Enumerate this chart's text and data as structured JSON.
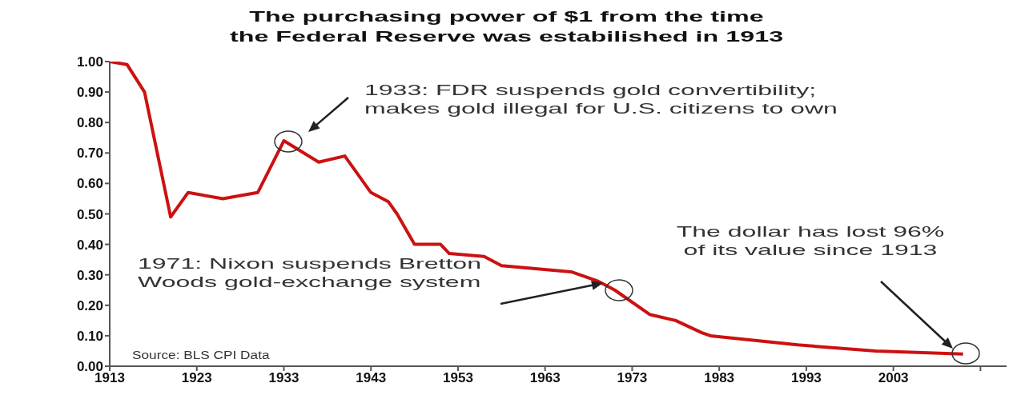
{
  "chart_data": {
    "type": "line",
    "title": "The purchasing power of $1 from the time\nthe Federal Reserve was estabilished in 1913",
    "x": [
      1913,
      1915,
      1917,
      1920,
      1922,
      1926,
      1930,
      1933,
      1937,
      1940,
      1943,
      1945,
      1946,
      1948,
      1951,
      1952,
      1956,
      1958,
      1966,
      1969,
      1971,
      1975,
      1978,
      1981,
      1982,
      1992,
      2001,
      2011
    ],
    "series": [
      {
        "color": "#cc1111",
        "values": [
          1.0,
          0.99,
          0.9,
          0.49,
          0.57,
          0.55,
          0.57,
          0.74,
          0.67,
          0.69,
          0.57,
          0.54,
          0.5,
          0.4,
          0.4,
          0.37,
          0.36,
          0.33,
          0.31,
          0.28,
          0.25,
          0.17,
          0.15,
          0.11,
          0.1,
          0.07,
          0.05,
          0.04
        ]
      }
    ],
    "xlim": [
      1913,
      2016
    ],
    "xticks": [
      1913,
      1923,
      1933,
      1943,
      1953,
      1963,
      1973,
      1983,
      1993,
      2003,
      {
        "value": 2013,
        "label": null
      }
    ],
    "ylim": [
      0,
      1
    ],
    "yticks": [
      {
        "value": 0,
        "label": "0.00"
      },
      {
        "value": 0.1,
        "label": "0.10"
      },
      {
        "value": 0.2,
        "label": "0.20"
      },
      {
        "value": 0.3,
        "label": "0.30"
      },
      {
        "value": 0.4,
        "label": "0.40"
      },
      {
        "value": 0.5,
        "label": "0.50"
      },
      {
        "value": 0.6,
        "label": "0.60"
      },
      {
        "value": 0.7,
        "label": "0.70"
      },
      {
        "value": 0.8,
        "label": "0.80"
      },
      {
        "value": 0.9,
        "label": "0.90"
      },
      {
        "value": 1,
        "label": "1.00"
      }
    ],
    "grid": false,
    "legend": false,
    "marker": "none",
    "line_style": "solid",
    "annotations": [
      "1933: FDR suspends gold convertibility;\nmakes gold illegal for U.S. citizens to own",
      "1971: Nixon suspends Bretton\nWoods gold-exchange system",
      "The dollar has lost 96%\nof its value since 1913",
      "Source: BLS CPI Data"
    ]
  }
}
